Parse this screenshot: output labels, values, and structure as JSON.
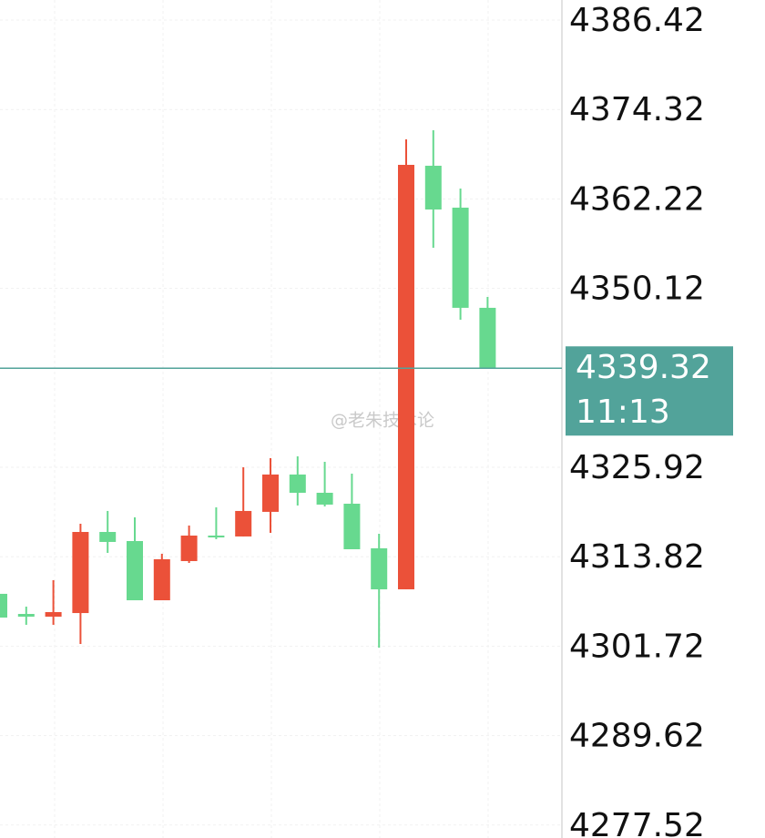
{
  "chart_data": {
    "type": "candlestick",
    "open": [
      4308.8,
      4306.08,
      4305.71,
      4306.2,
      4317.17,
      4315.94,
      4307.93,
      4313.23,
      4316.68,
      4316.56,
      4319.89,
      4324.94,
      4322.47,
      4320.99,
      4314.96,
      4309.41,
      4366.71,
      4361.04,
      4347.49
    ],
    "high": [
      4308.8,
      4307.07,
      4310.65,
      4318.28,
      4320.01,
      4319.15,
      4314.22,
      4318.04,
      4320.5,
      4325.92,
      4327.15,
      4327.4,
      4326.66,
      4325.06,
      4316.93,
      4370.28,
      4371.51,
      4363.63,
      4348.96
    ],
    "low": [
      4305.59,
      4304.61,
      4304.61,
      4302.02,
      4314.34,
      4307.93,
      4307.93,
      4312.98,
      4316.19,
      4316.56,
      4317.05,
      4320.75,
      4320.62,
      4314.83,
      4301.53,
      4309.41,
      4355.62,
      4345.88,
      4339.32
    ],
    "close": [
      4305.59,
      4305.71,
      4306.33,
      4317.17,
      4315.82,
      4307.93,
      4313.48,
      4316.68,
      4316.43,
      4320.01,
      4324.94,
      4322.47,
      4320.87,
      4314.83,
      4309.41,
      4366.83,
      4360.79,
      4347.49,
      4339.32
    ],
    "up_color": "#eb5139",
    "down_color": "#67d98f",
    "ylim": [
      4275.77,
      4389.13
    ],
    "yticks": [
      4386.42,
      4374.32,
      4362.22,
      4350.12,
      4325.92,
      4313.82,
      4301.72,
      4289.62,
      4277.52
    ],
    "grid": true,
    "last_price": 4339.32,
    "last_time": "11:13",
    "last_color": "#52a39a",
    "watermark": "@老朱技术论"
  }
}
